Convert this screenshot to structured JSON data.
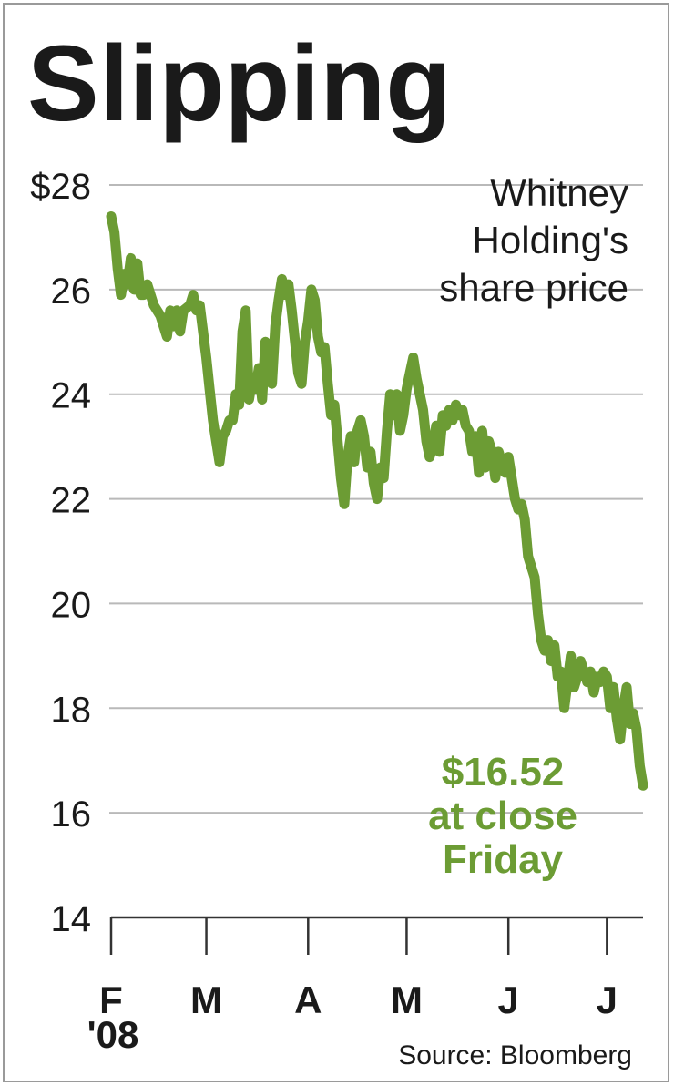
{
  "chart_data": {
    "type": "line",
    "title": "Slipping",
    "subtitle_lines": [
      "Whitney",
      "Holding's",
      "share price"
    ],
    "y_tick_labels": [
      "$28",
      "26",
      "24",
      "22",
      "20",
      "18",
      "16",
      "14"
    ],
    "y_ticks": [
      28,
      26,
      24,
      22,
      20,
      18,
      16,
      14
    ],
    "ylim": [
      14,
      28
    ],
    "x_tick_labels": [
      "F",
      "M",
      "A",
      "M",
      "J",
      "J"
    ],
    "x_year_label": "'08",
    "grid": true,
    "annotation_lines": [
      "$16.52",
      "at close",
      "Friday"
    ],
    "annotation_color": "#6c9c34",
    "line_color": "#6c9c34",
    "source": "Source: Bloomberg",
    "x_ticks": [
      "2008-02-01",
      "2008-03-01",
      "2008-04-01",
      "2008-05-01",
      "2008-06-01",
      "2008-07-01"
    ],
    "xlim": [
      "2008-02-01",
      "2008-07-12"
    ],
    "series": [
      {
        "values": [
          [
            "2008-02-01",
            27.4
          ],
          [
            "2008-02-02",
            27.1
          ],
          [
            "2008-02-03",
            26.4
          ],
          [
            "2008-02-04",
            25.9
          ],
          [
            "2008-02-05",
            26.3
          ],
          [
            "2008-02-06",
            26.1
          ],
          [
            "2008-02-07",
            26.6
          ],
          [
            "2008-02-08",
            26.0
          ],
          [
            "2008-02-09",
            26.5
          ],
          [
            "2008-02-10",
            25.9
          ],
          [
            "2008-02-11",
            25.9
          ],
          [
            "2008-02-12",
            26.1
          ],
          [
            "2008-02-14",
            25.7
          ],
          [
            "2008-02-16",
            25.5
          ],
          [
            "2008-02-18",
            25.1
          ],
          [
            "2008-02-19",
            25.6
          ],
          [
            "2008-02-20",
            25.3
          ],
          [
            "2008-02-21",
            25.6
          ],
          [
            "2008-02-22",
            25.2
          ],
          [
            "2008-02-23",
            25.6
          ],
          [
            "2008-02-25",
            25.7
          ],
          [
            "2008-02-26",
            25.9
          ],
          [
            "2008-02-27",
            25.6
          ],
          [
            "2008-02-28",
            25.7
          ],
          [
            "2008-02-29",
            25.2
          ],
          [
            "2008-03-01",
            24.7
          ],
          [
            "2008-03-02",
            24.1
          ],
          [
            "2008-03-03",
            23.5
          ],
          [
            "2008-03-04",
            23.1
          ],
          [
            "2008-03-05",
            22.7
          ],
          [
            "2008-03-06",
            23.2
          ],
          [
            "2008-03-07",
            23.3
          ],
          [
            "2008-03-08",
            23.5
          ],
          [
            "2008-03-09",
            23.5
          ],
          [
            "2008-03-10",
            24.0
          ],
          [
            "2008-03-11",
            23.8
          ],
          [
            "2008-03-12",
            25.2
          ],
          [
            "2008-03-13",
            25.6
          ],
          [
            "2008-03-14",
            23.9
          ],
          [
            "2008-03-15",
            24.3
          ],
          [
            "2008-03-16",
            24.1
          ],
          [
            "2008-03-17",
            24.5
          ],
          [
            "2008-03-18",
            23.9
          ],
          [
            "2008-03-19",
            25.0
          ],
          [
            "2008-03-20",
            24.6
          ],
          [
            "2008-03-21",
            24.2
          ],
          [
            "2008-03-22",
            25.3
          ],
          [
            "2008-03-23",
            25.8
          ],
          [
            "2008-03-24",
            26.2
          ],
          [
            "2008-03-25",
            25.9
          ],
          [
            "2008-03-26",
            26.1
          ],
          [
            "2008-03-27",
            25.6
          ],
          [
            "2008-03-28",
            25.0
          ],
          [
            "2008-03-29",
            24.4
          ],
          [
            "2008-03-30",
            24.2
          ],
          [
            "2008-03-31",
            25.0
          ],
          [
            "2008-04-01",
            25.4
          ],
          [
            "2008-04-02",
            26.0
          ],
          [
            "2008-04-03",
            25.8
          ],
          [
            "2008-04-04",
            25.1
          ],
          [
            "2008-04-05",
            24.8
          ],
          [
            "2008-04-06",
            24.9
          ],
          [
            "2008-04-07",
            24.2
          ],
          [
            "2008-04-08",
            23.6
          ],
          [
            "2008-04-09",
            23.8
          ],
          [
            "2008-04-10",
            23.1
          ],
          [
            "2008-04-11",
            22.4
          ],
          [
            "2008-04-12",
            21.9
          ],
          [
            "2008-04-13",
            22.8
          ],
          [
            "2008-04-14",
            23.2
          ],
          [
            "2008-04-15",
            22.7
          ],
          [
            "2008-04-16",
            23.3
          ],
          [
            "2008-04-17",
            23.5
          ],
          [
            "2008-04-18",
            23.2
          ],
          [
            "2008-04-19",
            22.6
          ],
          [
            "2008-04-20",
            22.9
          ],
          [
            "2008-04-21",
            22.3
          ],
          [
            "2008-04-22",
            22.0
          ],
          [
            "2008-04-23",
            22.6
          ],
          [
            "2008-04-24",
            22.4
          ],
          [
            "2008-04-25",
            23.3
          ],
          [
            "2008-04-26",
            24.0
          ],
          [
            "2008-04-27",
            23.6
          ],
          [
            "2008-04-28",
            24.0
          ],
          [
            "2008-04-29",
            23.3
          ],
          [
            "2008-04-30",
            23.6
          ],
          [
            "2008-05-01",
            24.1
          ],
          [
            "2008-05-02",
            24.4
          ],
          [
            "2008-05-03",
            24.7
          ],
          [
            "2008-05-04",
            24.3
          ],
          [
            "2008-05-05",
            24.0
          ],
          [
            "2008-05-06",
            23.7
          ],
          [
            "2008-05-07",
            23.1
          ],
          [
            "2008-05-08",
            22.8
          ],
          [
            "2008-05-09",
            23.0
          ],
          [
            "2008-05-10",
            23.4
          ],
          [
            "2008-05-11",
            22.9
          ],
          [
            "2008-05-12",
            23.6
          ],
          [
            "2008-05-13",
            23.4
          ],
          [
            "2008-05-14",
            23.7
          ],
          [
            "2008-05-15",
            23.5
          ],
          [
            "2008-05-16",
            23.8
          ],
          [
            "2008-05-17",
            23.6
          ],
          [
            "2008-05-18",
            23.7
          ],
          [
            "2008-05-19",
            23.4
          ],
          [
            "2008-05-20",
            23.3
          ],
          [
            "2008-05-21",
            22.9
          ],
          [
            "2008-05-22",
            23.2
          ],
          [
            "2008-05-23",
            22.5
          ],
          [
            "2008-05-24",
            23.3
          ],
          [
            "2008-05-25",
            22.6
          ],
          [
            "2008-05-26",
            23.1
          ],
          [
            "2008-05-27",
            22.9
          ],
          [
            "2008-05-28",
            22.4
          ],
          [
            "2008-05-29",
            22.9
          ],
          [
            "2008-05-30",
            22.7
          ],
          [
            "2008-05-31",
            22.5
          ],
          [
            "2008-06-01",
            22.8
          ],
          [
            "2008-06-02",
            22.4
          ],
          [
            "2008-06-03",
            22.0
          ],
          [
            "2008-06-04",
            21.8
          ],
          [
            "2008-06-05",
            21.9
          ],
          [
            "2008-06-06",
            21.6
          ],
          [
            "2008-06-07",
            20.9
          ],
          [
            "2008-06-08",
            20.7
          ],
          [
            "2008-06-09",
            20.5
          ],
          [
            "2008-06-10",
            19.8
          ],
          [
            "2008-06-11",
            19.3
          ],
          [
            "2008-06-12",
            19.1
          ],
          [
            "2008-06-13",
            19.3
          ],
          [
            "2008-06-14",
            18.9
          ],
          [
            "2008-06-15",
            19.2
          ],
          [
            "2008-06-16",
            18.6
          ],
          [
            "2008-06-17",
            18.7
          ],
          [
            "2008-06-18",
            18.0
          ],
          [
            "2008-06-19",
            18.5
          ],
          [
            "2008-06-20",
            19.0
          ],
          [
            "2008-06-21",
            18.4
          ],
          [
            "2008-06-22",
            18.6
          ],
          [
            "2008-06-23",
            18.9
          ],
          [
            "2008-06-24",
            18.7
          ],
          [
            "2008-06-25",
            18.5
          ],
          [
            "2008-06-26",
            18.7
          ],
          [
            "2008-06-27",
            18.3
          ],
          [
            "2008-06-28",
            18.6
          ],
          [
            "2008-06-29",
            18.5
          ],
          [
            "2008-06-30",
            18.7
          ],
          [
            "2008-07-01",
            18.6
          ],
          [
            "2008-07-02",
            18.0
          ],
          [
            "2008-07-03",
            18.4
          ],
          [
            "2008-07-04",
            17.8
          ],
          [
            "2008-07-05",
            17.4
          ],
          [
            "2008-07-06",
            18.0
          ],
          [
            "2008-07-07",
            18.4
          ],
          [
            "2008-07-08",
            17.7
          ],
          [
            "2008-07-09",
            17.9
          ],
          [
            "2008-07-10",
            17.6
          ],
          [
            "2008-07-11",
            16.9
          ],
          [
            "2008-07-12",
            16.52
          ]
        ]
      }
    ]
  }
}
